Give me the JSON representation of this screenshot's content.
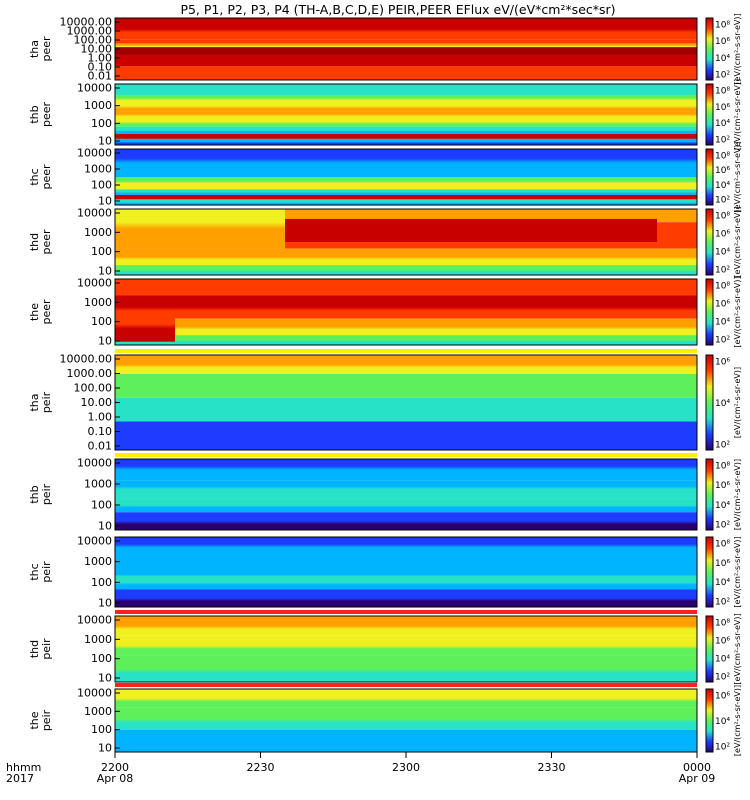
{
  "title": "P5, P1, P2, P3, P4 (TH-A,B,C,D,E) PEIR,PEER EFlux eV/(eV*cm²*sec*sr)",
  "colorbar_label": "[eV/(cm²-s-sr-eV)]",
  "chart_data": {
    "type": "heatmap",
    "panels": [
      {
        "label": "tha\npeer",
        "yticks": [
          "10000.00",
          "1000.00",
          "100.00",
          "10.00",
          "1.00",
          "0.10",
          "0.01"
        ],
        "cticks": [
          "10⁸",
          "10⁶",
          "10⁴",
          "10²"
        ],
        "style": "tha_peer"
      },
      {
        "label": "thb\npeer",
        "yticks": [
          "10000",
          "1000",
          "100",
          "10"
        ],
        "cticks": [
          "10⁸",
          "10⁶",
          "10⁴",
          "10²"
        ],
        "style": "thb_peer"
      },
      {
        "label": "thc\npeer",
        "yticks": [
          "10000",
          "1000",
          "100",
          "10"
        ],
        "cticks": [
          "10⁸",
          "10⁶",
          "10⁴",
          "10²"
        ],
        "style": "thc_peer"
      },
      {
        "label": "thd\npeer",
        "yticks": [
          "10000",
          "1000",
          "100",
          "10"
        ],
        "cticks": [
          "10⁸",
          "10⁶",
          "10⁴",
          "10²"
        ],
        "style": "thd_peer"
      },
      {
        "label": "the\npeer",
        "yticks": [
          "10000",
          "1000",
          "100",
          "10"
        ],
        "cticks": [
          "10⁸",
          "10⁶",
          "10⁴",
          "10²"
        ],
        "style": "the_peer"
      },
      {
        "label": "tha\npeir",
        "yticks": [
          "10000.00",
          "1000.00",
          "100.00",
          "10.00",
          "1.00",
          "0.10",
          "0.01"
        ],
        "cticks": [
          "10⁶",
          "10⁴",
          "10²"
        ],
        "style": "tha_peir"
      },
      {
        "label": "thb\npeir",
        "yticks": [
          "10000",
          "1000",
          "100",
          "10"
        ],
        "cticks": [
          "10⁸",
          "10⁶",
          "10⁴",
          "10²"
        ],
        "style": "thb_peir"
      },
      {
        "label": "thc\npeir",
        "yticks": [
          "10000",
          "1000",
          "100",
          "10"
        ],
        "cticks": [
          "10⁸",
          "10⁶",
          "10⁴",
          "10²"
        ],
        "style": "thc_peir"
      },
      {
        "label": "thd\npeir",
        "yticks": [
          "10000",
          "1000",
          "100",
          "10"
        ],
        "cticks": [
          "10⁸",
          "10⁶",
          "10⁴",
          "10²"
        ],
        "style": "thd_peir"
      },
      {
        "label": "the\npeir",
        "yticks": [
          "10000",
          "1000",
          "100",
          "10"
        ],
        "cticks": [
          "10⁶",
          "10⁴",
          "10²"
        ],
        "style": "the_peir"
      }
    ],
    "xaxis": {
      "unit_label": "hhmm",
      "year_label": "2017",
      "ticks": [
        {
          "time": "2200",
          "date": "Apr 08"
        },
        {
          "time": "2230",
          "date": ""
        },
        {
          "time": "2300",
          "date": ""
        },
        {
          "time": "2330",
          "date": ""
        },
        {
          "time": "0000",
          "date": "Apr 09"
        }
      ]
    },
    "colormap": [
      "#2a0070",
      "#1c3cff",
      "#00b4ff",
      "#28e2c8",
      "#5ef05a",
      "#f0f020",
      "#ffa000",
      "#ff3c00",
      "#c80000"
    ]
  }
}
